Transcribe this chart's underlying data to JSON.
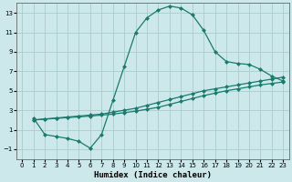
{
  "xlabel": "Humidex (Indice chaleur)",
  "bg_color": "#cce8ea",
  "grid_color": "#aacccc",
  "line_color": "#1a7a6e",
  "xlim": [
    -0.5,
    23.5
  ],
  "ylim": [
    -2,
    14
  ],
  "xticks": [
    0,
    1,
    2,
    3,
    4,
    5,
    6,
    7,
    8,
    9,
    10,
    11,
    12,
    13,
    14,
    15,
    16,
    17,
    18,
    19,
    20,
    21,
    22,
    23
  ],
  "yticks": [
    -1,
    1,
    3,
    5,
    7,
    9,
    11,
    13
  ],
  "line1_x": [
    1,
    2,
    3,
    4,
    5,
    6,
    7,
    8,
    9,
    10,
    11,
    12,
    13,
    14,
    15,
    16,
    17,
    18,
    19,
    20,
    21,
    22,
    23
  ],
  "line1_y": [
    2.0,
    2.1,
    2.2,
    2.3,
    2.4,
    2.5,
    2.6,
    2.8,
    3.0,
    3.2,
    3.5,
    3.8,
    4.1,
    4.4,
    4.7,
    5.0,
    5.2,
    5.4,
    5.6,
    5.8,
    6.0,
    6.2,
    6.4
  ],
  "line2_x": [
    1,
    2,
    3,
    4,
    5,
    6,
    7,
    8,
    9,
    10,
    11,
    12,
    13,
    14,
    15,
    16,
    17,
    18,
    19,
    20,
    21,
    22,
    23
  ],
  "line2_y": [
    2.0,
    2.08,
    2.16,
    2.24,
    2.32,
    2.4,
    2.5,
    2.6,
    2.75,
    2.9,
    3.1,
    3.3,
    3.6,
    3.9,
    4.2,
    4.5,
    4.75,
    5.0,
    5.2,
    5.4,
    5.6,
    5.75,
    5.9
  ],
  "line3_x": [
    1,
    2,
    3,
    4,
    5,
    6,
    7,
    8,
    9,
    10,
    11,
    12,
    13,
    14,
    15,
    16,
    17,
    18,
    19,
    20,
    21,
    22,
    23
  ],
  "line3_y": [
    2.2,
    0.5,
    0.3,
    0.1,
    -0.2,
    -0.9,
    0.5,
    4.0,
    7.5,
    11.0,
    12.5,
    13.3,
    13.7,
    13.5,
    12.8,
    11.2,
    9.0,
    8.0,
    7.8,
    7.7,
    7.2,
    6.5,
    6.0
  ],
  "markersize": 2.5,
  "linewidth": 0.9
}
